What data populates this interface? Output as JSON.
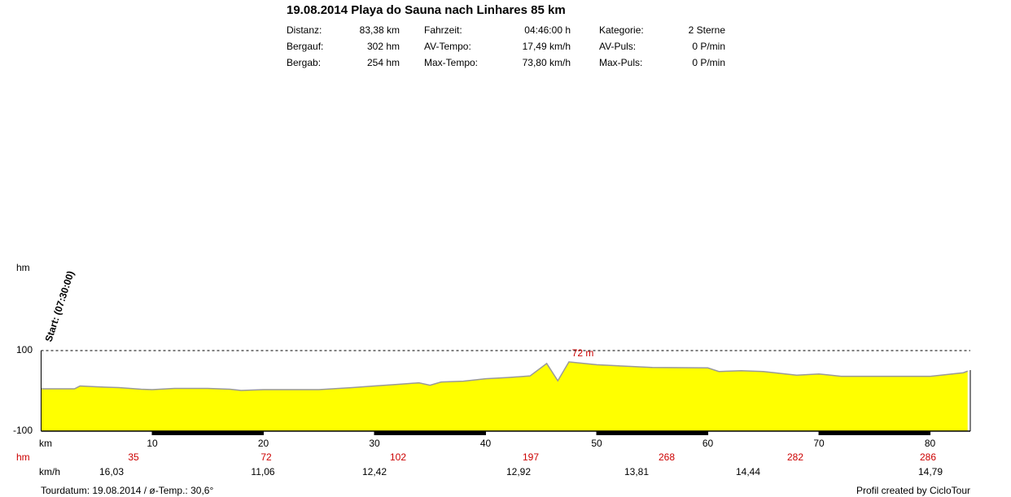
{
  "chart_data": {
    "type": "area",
    "title": "19.08.2014 Playa do Sauna nach Linhares 85 km",
    "stats": [
      [
        "Distanz:",
        "83,38 km",
        "Fahrzeit:",
        "04:46:00 h",
        "Kategorie:",
        "2 Sterne"
      ],
      [
        "Bergauf:",
        "302 hm",
        "AV-Tempo:",
        "17,49 km/h",
        "AV-Puls:",
        "0 P/min"
      ],
      [
        "Bergab:",
        "254 hm",
        "Max-Tempo:",
        "73,80 km/h",
        "Max-Puls:",
        "0 P/min"
      ]
    ],
    "y_label": "hm",
    "x_label": "km",
    "start_label": "Start: (07:30:00)",
    "max_label": "72 m",
    "color": "#ffff00",
    "line_color": "#999999",
    "x": [
      0,
      3,
      3.5,
      5,
      7,
      9,
      10,
      12,
      15,
      17,
      18,
      20,
      25,
      28,
      30,
      32,
      33,
      34,
      35,
      36,
      38,
      40,
      42,
      44,
      45.5,
      46.5,
      47.5,
      50,
      52,
      55,
      60,
      61,
      63,
      65,
      68,
      70,
      72,
      80,
      83,
      83.38
    ],
    "values": [
      5,
      5,
      12,
      10,
      8,
      4,
      3,
      6,
      6,
      4,
      1,
      3,
      3,
      8,
      12,
      16,
      18,
      20,
      14,
      22,
      24,
      30,
      33,
      37,
      68,
      25,
      72,
      65,
      62,
      58,
      57,
      48,
      50,
      48,
      39,
      42,
      36,
      36,
      45,
      49
    ],
    "xlim": [
      0,
      83.38
    ],
    "ylim": [
      -100,
      100
    ],
    "xticks": [
      10,
      20,
      30,
      40,
      50,
      60,
      70,
      80
    ],
    "yticks": [
      -100,
      100
    ],
    "hm_label": "hm",
    "hm_values": [
      "35",
      "72",
      "102",
      "197",
      "268",
      "282",
      "286"
    ],
    "speed_label": "km/h",
    "speed_values": [
      "16,03",
      "11,06",
      "12,42",
      "12,92",
      "13,81",
      "14,44",
      "14,79"
    ],
    "footer_left": "Tourdatum: 19.08.2014  /  ø-Temp.: 30,6°",
    "footer_right": "Profil created by CicloTour"
  }
}
